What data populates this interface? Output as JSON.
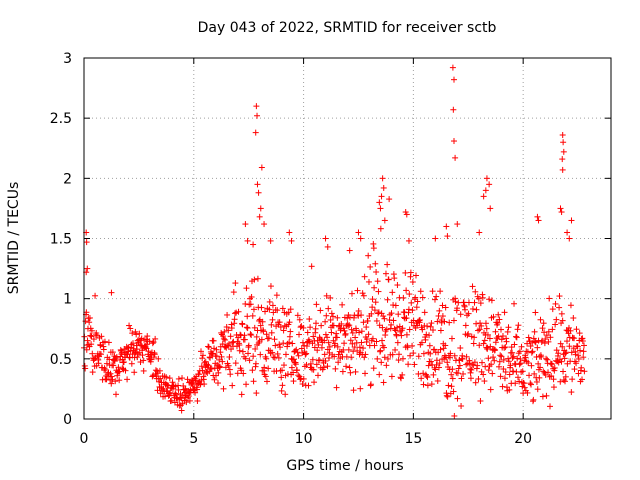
{
  "chart_data": {
    "type": "scatter",
    "title": "Day 043 of 2022, SRMTID for receiver sctb",
    "xlabel": "GPS time / hours",
    "ylabel": "SRMTID / TECUs",
    "xlim": [
      0,
      24
    ],
    "ylim": [
      0,
      3
    ],
    "xticks": [
      0,
      5,
      10,
      15,
      20
    ],
    "xtick_labels": [
      "0",
      "5",
      "10",
      "15",
      "20"
    ],
    "yticks": [
      0,
      0.5,
      1,
      1.5,
      2,
      2.5,
      3
    ],
    "ytick_labels": [
      "0",
      "0.5",
      "1",
      "1.5",
      "2",
      "2.5",
      "3"
    ],
    "grid": true,
    "marker": "+",
    "color": "#ff0000",
    "series": [
      {
        "name": "sctb",
        "profile_x": [
          0.0,
          0.5,
          1.0,
          1.5,
          2.0,
          2.5,
          3.0,
          3.5,
          4.0,
          4.5,
          5.0,
          5.5,
          6.0,
          6.5,
          7.0,
          7.5,
          8.0,
          8.5,
          9.0,
          9.5,
          10.0,
          10.5,
          11.0,
          11.5,
          12.0,
          12.5,
          13.0,
          13.5,
          14.0,
          14.5,
          15.0,
          15.5,
          16.0,
          16.5,
          17.0,
          17.5,
          18.0,
          18.5,
          19.0,
          19.5,
          20.0,
          20.5,
          21.0,
          21.5,
          22.0,
          22.5,
          22.8
        ],
        "profile_center": [
          0.7,
          0.6,
          0.4,
          0.4,
          0.55,
          0.6,
          0.55,
          0.3,
          0.22,
          0.2,
          0.28,
          0.42,
          0.5,
          0.55,
          0.6,
          0.7,
          0.75,
          0.7,
          0.6,
          0.55,
          0.55,
          0.6,
          0.65,
          0.7,
          0.7,
          0.7,
          0.75,
          0.8,
          0.8,
          0.8,
          0.75,
          0.7,
          0.65,
          0.6,
          0.6,
          0.65,
          0.7,
          0.65,
          0.55,
          0.45,
          0.4,
          0.45,
          0.55,
          0.6,
          0.6,
          0.55,
          0.55
        ],
        "profile_spread": [
          0.25,
          0.2,
          0.15,
          0.15,
          0.18,
          0.18,
          0.18,
          0.12,
          0.1,
          0.1,
          0.12,
          0.15,
          0.2,
          0.3,
          0.35,
          0.4,
          0.45,
          0.4,
          0.35,
          0.3,
          0.3,
          0.3,
          0.35,
          0.35,
          0.35,
          0.4,
          0.4,
          0.45,
          0.45,
          0.45,
          0.4,
          0.4,
          0.4,
          0.45,
          0.45,
          0.45,
          0.45,
          0.4,
          0.35,
          0.35,
          0.3,
          0.3,
          0.35,
          0.4,
          0.4,
          0.35,
          0.35
        ],
        "peaks": [
          {
            "x": 0.1,
            "y": 1.55
          },
          {
            "x": 0.12,
            "y": 1.47
          },
          {
            "x": 0.15,
            "y": 1.25
          },
          {
            "x": 0.1,
            "y": 1.22
          },
          {
            "x": 1.25,
            "y": 1.05
          },
          {
            "x": 7.35,
            "y": 1.62
          },
          {
            "x": 7.45,
            "y": 1.48
          },
          {
            "x": 7.7,
            "y": 1.45
          },
          {
            "x": 7.85,
            "y": 2.6
          },
          {
            "x": 7.88,
            "y": 2.52
          },
          {
            "x": 7.82,
            "y": 2.38
          },
          {
            "x": 7.9,
            "y": 1.95
          },
          {
            "x": 7.95,
            "y": 1.88
          },
          {
            "x": 8.05,
            "y": 1.75
          },
          {
            "x": 8.1,
            "y": 2.09
          },
          {
            "x": 8.0,
            "y": 1.68
          },
          {
            "x": 8.2,
            "y": 1.62
          },
          {
            "x": 8.5,
            "y": 1.48
          },
          {
            "x": 9.35,
            "y": 1.55
          },
          {
            "x": 9.45,
            "y": 1.48
          },
          {
            "x": 11.0,
            "y": 1.5
          },
          {
            "x": 11.1,
            "y": 1.43
          },
          {
            "x": 12.1,
            "y": 1.4
          },
          {
            "x": 12.5,
            "y": 1.55
          },
          {
            "x": 12.6,
            "y": 1.5
          },
          {
            "x": 13.2,
            "y": 1.42
          },
          {
            "x": 13.45,
            "y": 1.8
          },
          {
            "x": 13.5,
            "y": 1.75
          },
          {
            "x": 13.6,
            "y": 2.0
          },
          {
            "x": 13.65,
            "y": 1.92
          },
          {
            "x": 13.55,
            "y": 1.85
          },
          {
            "x": 13.7,
            "y": 1.65
          },
          {
            "x": 14.65,
            "y": 1.72
          },
          {
            "x": 14.7,
            "y": 1.7
          },
          {
            "x": 14.8,
            "y": 1.48
          },
          {
            "x": 16.0,
            "y": 1.5
          },
          {
            "x": 16.5,
            "y": 1.6
          },
          {
            "x": 16.55,
            "y": 1.52
          },
          {
            "x": 16.8,
            "y": 2.92
          },
          {
            "x": 16.85,
            "y": 2.82
          },
          {
            "x": 16.82,
            "y": 2.57
          },
          {
            "x": 16.85,
            "y": 2.31
          },
          {
            "x": 16.9,
            "y": 2.17
          },
          {
            "x": 17.0,
            "y": 1.62
          },
          {
            "x": 18.0,
            "y": 1.55
          },
          {
            "x": 18.2,
            "y": 1.85
          },
          {
            "x": 18.3,
            "y": 1.9
          },
          {
            "x": 18.35,
            "y": 2.0
          },
          {
            "x": 18.45,
            "y": 1.95
          },
          {
            "x": 18.5,
            "y": 1.75
          },
          {
            "x": 20.65,
            "y": 1.68
          },
          {
            "x": 20.7,
            "y": 1.65
          },
          {
            "x": 21.7,
            "y": 1.75
          },
          {
            "x": 21.75,
            "y": 1.72
          },
          {
            "x": 21.8,
            "y": 2.36
          },
          {
            "x": 21.82,
            "y": 2.3
          },
          {
            "x": 21.85,
            "y": 2.22
          },
          {
            "x": 21.78,
            "y": 2.16
          },
          {
            "x": 21.8,
            "y": 2.07
          },
          {
            "x": 22.0,
            "y": 1.55
          },
          {
            "x": 22.1,
            "y": 1.5
          },
          {
            "x": 22.2,
            "y": 1.65
          }
        ]
      }
    ]
  }
}
